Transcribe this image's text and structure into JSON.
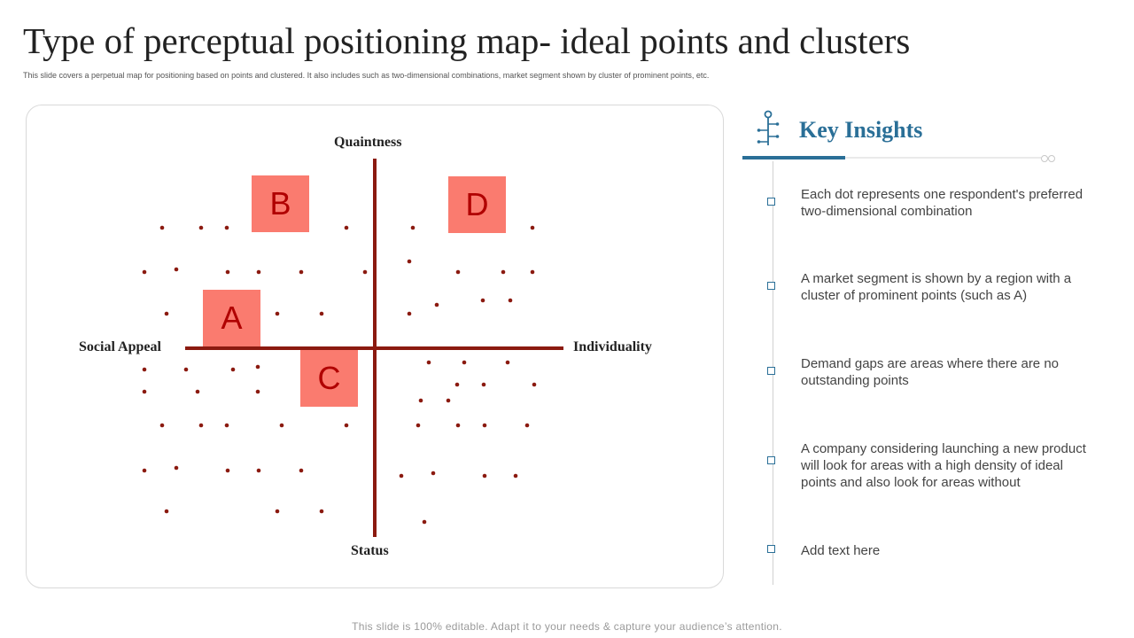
{
  "slide": {
    "title": "Type of perceptual positioning map- ideal points and clusters",
    "subtitle": "This slide covers a perpetual map  for positioning based on points and clustered. It also includes such as two-dimensional combinations, market segment shown by cluster of prominent points, etc.",
    "footer": "This slide is 100% editable. Adapt it to your needs & capture your audience’s attention."
  },
  "map": {
    "axes": {
      "top": "Quaintness",
      "bottom": "Status",
      "left": "Social Appeal",
      "right": "Individuality"
    },
    "clusters": [
      {
        "label": "B"
      },
      {
        "label": "D"
      },
      {
        "label": "A"
      },
      {
        "label": "C"
      }
    ],
    "colors": {
      "axis": "#8b1a10",
      "dot": "#8b1a10",
      "cluster_fill": "#fa7b6f",
      "cluster_text": "#b00000"
    }
  },
  "insights": {
    "title": "Key Insights",
    "icon": "branch-timeline-icon",
    "accent": "#2a6f97",
    "items": [
      {
        "text": "Each dot represents one respondent's preferred two-dimensional combination"
      },
      {
        "text": "A market segment is shown by a region with a cluster of prominent points (such as A)"
      },
      {
        "text": "Demand gaps are areas where there are no outstanding points"
      },
      {
        "text": "A company considering launching  a new product will look for areas with a high density of ideal points and also look for areas without"
      },
      {
        "text": "Add text here"
      }
    ]
  }
}
